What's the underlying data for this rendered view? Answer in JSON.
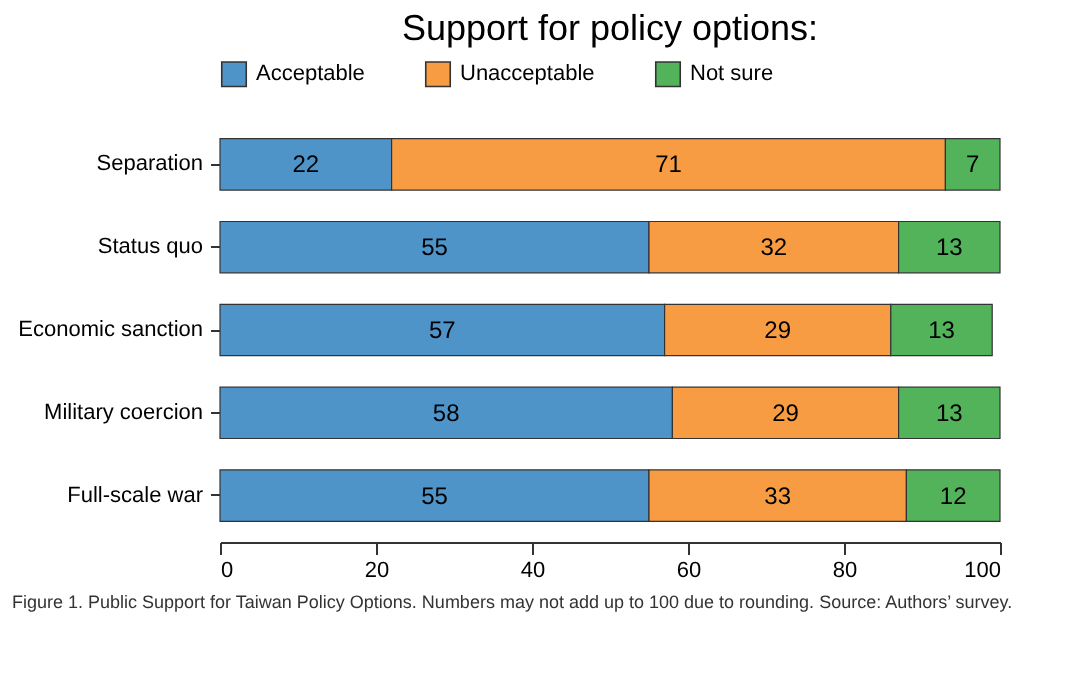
{
  "chart_data": {
    "type": "bar",
    "orientation": "horizontal",
    "stacked": true,
    "title": "Support for policy options:",
    "categories": [
      "Separation",
      "Status quo",
      "Economic sanction",
      "Military coercion",
      "Full-scale war"
    ],
    "series": [
      {
        "name": "Acceptable",
        "color": "#4f94c9",
        "values": [
          22,
          55,
          57,
          58,
          55
        ]
      },
      {
        "name": "Unacceptable",
        "color": "#f89c43",
        "values": [
          71,
          32,
          29,
          29,
          33
        ]
      },
      {
        "name": "Not sure",
        "color": "#52b35a",
        "values": [
          7,
          13,
          13,
          13,
          12
        ]
      }
    ],
    "xlim": [
      0,
      100
    ],
    "xticks": [
      0,
      20,
      40,
      60,
      80,
      100
    ],
    "data_labels": true,
    "legend": "top",
    "grid": false,
    "annotations": [
      "Figure 1. Public Support for Taiwan Policy Options. Numbers may not add up to 100 due to rounding. Source: Authors’ survey."
    ]
  }
}
